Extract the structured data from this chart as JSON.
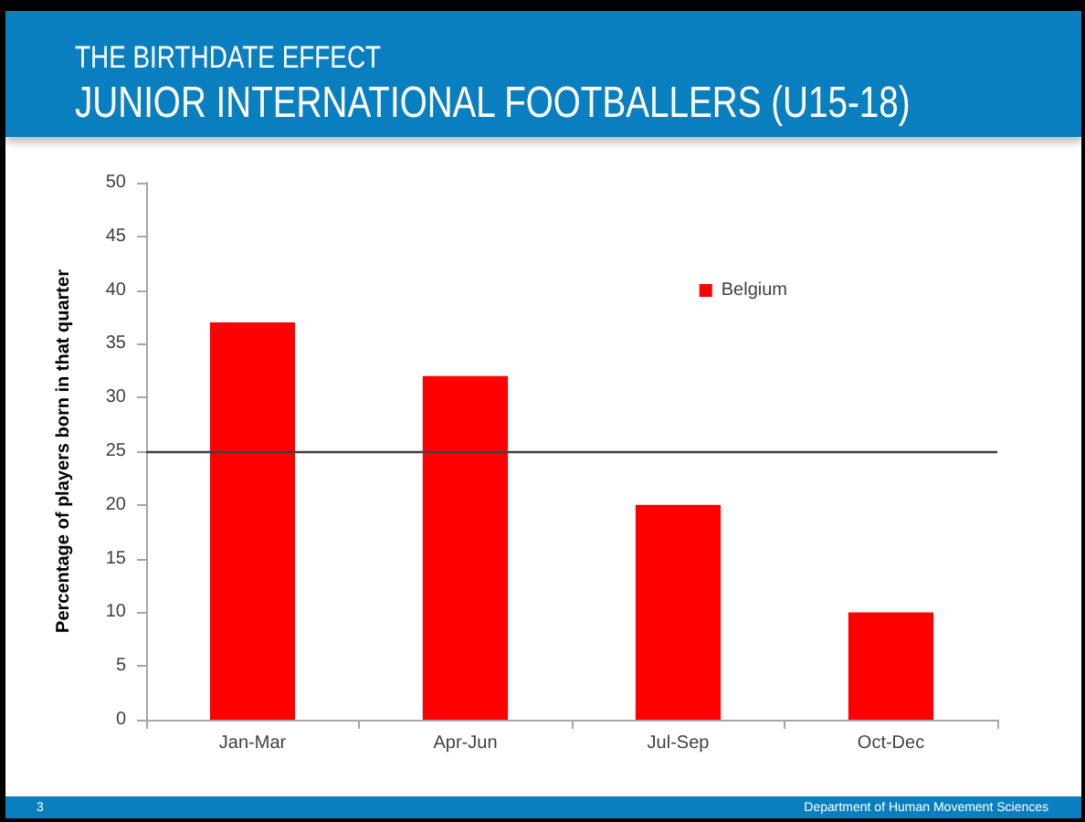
{
  "chart_data": {
    "type": "bar",
    "title": "THE BIRTHDATE EFFECT",
    "subtitle": "JUNIOR INTERNATIONAL FOOTBALLERS (U15-18)",
    "ylabel": "Percentage of players born in that quarter",
    "categories": [
      "Jan-Mar",
      "Apr-Jun",
      "Jul-Sep",
      "Oct-Dec"
    ],
    "series": [
      {
        "name": "Belgium",
        "color": "#ff0000",
        "values": [
          37,
          32,
          20,
          10
        ]
      }
    ],
    "ylim": [
      0,
      50
    ],
    "yticks": [
      0,
      5,
      10,
      15,
      20,
      25,
      30,
      35,
      40,
      45,
      50
    ],
    "grid": false,
    "legend": "top right",
    "ref_lines": [
      {
        "axis": "y",
        "value": 25,
        "color": "#404040"
      }
    ],
    "annotations": [
      "3",
      "Department of Human Movement Sciences"
    ]
  }
}
